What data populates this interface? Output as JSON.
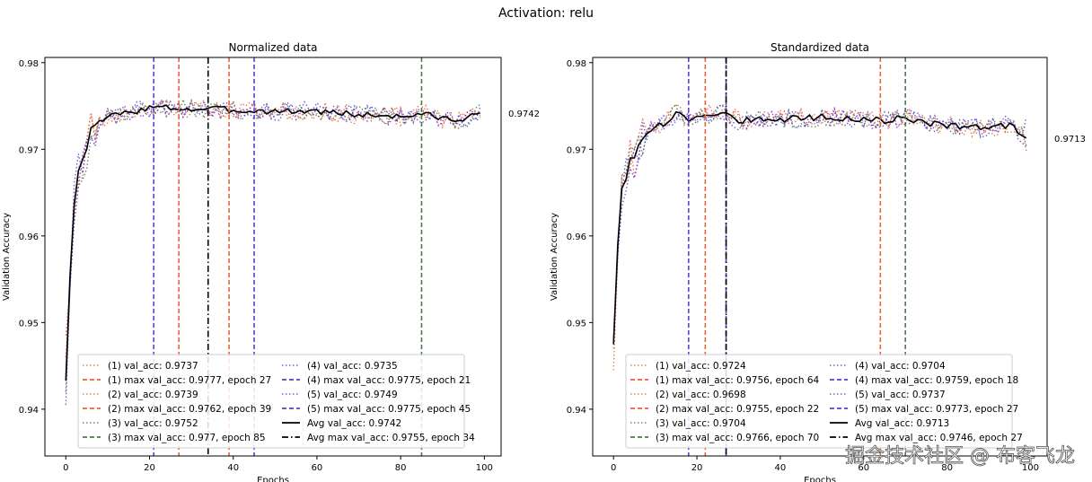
{
  "figure": {
    "suptitle": "Activation: relu",
    "watermark": "掘金技术社区 @ 布客飞龙"
  },
  "colors": {
    "run1": "#e8633a",
    "run2": "#e8633a",
    "run3": "#4a7a4a",
    "run4": "#5a3fd6",
    "run5": "#5a3fd6",
    "avg": "#000000"
  },
  "chart_data": [
    {
      "type": "line",
      "title": "Normalized data",
      "xlabel": "Epochs",
      "ylabel": "Validation Accuracy",
      "xlim": [
        -5,
        104
      ],
      "ylim": [
        0.9346,
        0.9806
      ],
      "xticks": [
        0,
        20,
        40,
        60,
        80,
        100
      ],
      "yticks": [
        0.94,
        0.95,
        0.96,
        0.97,
        0.98
      ],
      "ytick_labels": [
        "0.94",
        "0.95",
        "0.96",
        "0.97",
        "0.98"
      ],
      "final_avg_label": "0.9742",
      "final_avg_value": 0.9742,
      "avg_curve": {
        "start": 0.9433,
        "plateau": 0.9745,
        "keypoints": [
          [
            0,
            0.9433
          ],
          [
            1,
            0.9555
          ],
          [
            2,
            0.9635
          ],
          [
            3,
            0.9675
          ],
          [
            4,
            0.9688
          ],
          [
            5,
            0.97
          ],
          [
            6,
            0.9725
          ],
          [
            7,
            0.9728
          ],
          [
            8,
            0.9733
          ],
          [
            10,
            0.9737
          ],
          [
            12,
            0.974
          ],
          [
            15,
            0.9742
          ],
          [
            20,
            0.9748
          ],
          [
            25,
            0.9748
          ],
          [
            30,
            0.9746
          ],
          [
            35,
            0.9747
          ],
          [
            40,
            0.9745
          ],
          [
            50,
            0.9744
          ],
          [
            60,
            0.9744
          ],
          [
            70,
            0.974
          ],
          [
            80,
            0.9738
          ],
          [
            85,
            0.9741
          ],
          [
            90,
            0.9736
          ],
          [
            95,
            0.9733
          ],
          [
            99,
            0.9742
          ]
        ]
      },
      "vlines": [
        {
          "x": 27,
          "series": "run1",
          "style": "dashed"
        },
        {
          "x": 39,
          "series": "run2",
          "style": "dashed"
        },
        {
          "x": 85,
          "series": "run3",
          "style": "dashed"
        },
        {
          "x": 21,
          "series": "run4",
          "style": "dashed"
        },
        {
          "x": 45,
          "series": "run5",
          "style": "dashed"
        },
        {
          "x": 34,
          "series": "avg",
          "style": "dashdot"
        }
      ],
      "series": [
        {
          "name": "(1) val_acc",
          "final": 0.9737,
          "color_key": "run1",
          "start": 0.9485,
          "seed": 11
        },
        {
          "name": "(2) val_acc",
          "final": 0.9739,
          "color_key": "run2",
          "start": 0.946,
          "seed": 23
        },
        {
          "name": "(3) val_acc",
          "final": 0.9752,
          "color_key": "run3",
          "start": 0.942,
          "seed": 37
        },
        {
          "name": "(4) val_acc",
          "final": 0.9735,
          "color_key": "run4",
          "start": 0.9405,
          "seed": 41
        },
        {
          "name": "(5) val_acc",
          "final": 0.9749,
          "color_key": "run5",
          "start": 0.944,
          "seed": 53
        }
      ],
      "legend": {
        "placement": "lower-center",
        "col1": [
          {
            "label": "(1) val_acc: 0.9737",
            "style": "dotted",
            "color_key": "run1"
          },
          {
            "label": "(1) max val_acc: 0.9777, epoch 27",
            "style": "dashed",
            "color_key": "run1"
          },
          {
            "label": "(2) val_acc: 0.9739",
            "style": "dotted",
            "color_key": "run2"
          },
          {
            "label": "(2) max val_acc: 0.9762, epoch 39",
            "style": "dashed",
            "color_key": "run2"
          },
          {
            "label": "(3) val_acc: 0.9752",
            "style": "dotted",
            "color_key": "run3"
          },
          {
            "label": "(3) max val_acc: 0.977, epoch 85",
            "style": "dashed",
            "color_key": "run3"
          }
        ],
        "col2": [
          {
            "label": "(4) val_acc: 0.9735",
            "style": "dotted",
            "color_key": "run4"
          },
          {
            "label": "(4) max val_acc: 0.9775, epoch 21",
            "style": "dashed",
            "color_key": "run4"
          },
          {
            "label": "(5) val_acc: 0.9749",
            "style": "dotted",
            "color_key": "run5"
          },
          {
            "label": "(5) max val_acc: 0.9775, epoch 45",
            "style": "dashed",
            "color_key": "run5"
          },
          {
            "label": "Avg val_acc: 0.9742",
            "style": "solid",
            "color_key": "avg"
          },
          {
            "label": "Avg max val_acc: 0.9755, epoch 34",
            "style": "dashdot",
            "color_key": "avg"
          }
        ]
      }
    },
    {
      "type": "line",
      "title": "Standardized data",
      "xlabel": "Epochs",
      "ylabel": "Validation Accuracy",
      "xlim": [
        -5,
        104
      ],
      "ylim": [
        0.9346,
        0.9806
      ],
      "xticks": [
        0,
        20,
        40,
        60,
        80,
        100
      ],
      "yticks": [
        0.94,
        0.95,
        0.96,
        0.97,
        0.98
      ],
      "ytick_labels": [
        "0.94",
        "0.95",
        "0.96",
        "0.97",
        "0.98"
      ],
      "final_avg_label": "0.9713",
      "final_avg_value": 0.9713,
      "avg_curve": {
        "start": 0.9475,
        "plateau": 0.9735,
        "keypoints": [
          [
            0,
            0.9475
          ],
          [
            1,
            0.959
          ],
          [
            2,
            0.9655
          ],
          [
            3,
            0.9665
          ],
          [
            4,
            0.969
          ],
          [
            5,
            0.969
          ],
          [
            6,
            0.9705
          ],
          [
            7,
            0.9712
          ],
          [
            8,
            0.9718
          ],
          [
            10,
            0.9728
          ],
          [
            12,
            0.973
          ],
          [
            15,
            0.9742
          ],
          [
            18,
            0.9735
          ],
          [
            22,
            0.974
          ],
          [
            27,
            0.9743
          ],
          [
            30,
            0.9733
          ],
          [
            40,
            0.9735
          ],
          [
            50,
            0.9737
          ],
          [
            60,
            0.9735
          ],
          [
            65,
            0.9733
          ],
          [
            70,
            0.9737
          ],
          [
            75,
            0.973
          ],
          [
            80,
            0.9728
          ],
          [
            85,
            0.9725
          ],
          [
            90,
            0.9725
          ],
          [
            95,
            0.9728
          ],
          [
            99,
            0.9713
          ]
        ]
      },
      "vlines": [
        {
          "x": 64,
          "series": "run1",
          "style": "dashed"
        },
        {
          "x": 22,
          "series": "run2",
          "style": "dashed"
        },
        {
          "x": 70,
          "series": "run3",
          "style": "dashed"
        },
        {
          "x": 18,
          "series": "run4",
          "style": "dashed"
        },
        {
          "x": 27,
          "series": "run5",
          "style": "dashed"
        },
        {
          "x": 27,
          "series": "avg",
          "style": "dashdot"
        }
      ],
      "series": [
        {
          "name": "(1) val_acc",
          "final": 0.9724,
          "color_key": "run1",
          "start": 0.9445,
          "seed": 61
        },
        {
          "name": "(2) val_acc",
          "final": 0.9698,
          "color_key": "run2",
          "start": 0.947,
          "seed": 71
        },
        {
          "name": "(3) val_acc",
          "final": 0.9704,
          "color_key": "run3",
          "start": 0.948,
          "seed": 83
        },
        {
          "name": "(4) val_acc",
          "final": 0.9704,
          "color_key": "run4",
          "start": 0.9478,
          "seed": 97
        },
        {
          "name": "(5) val_acc",
          "final": 0.9737,
          "color_key": "run5",
          "start": 0.9482,
          "seed": 101
        }
      ],
      "legend": {
        "placement": "lower-center",
        "col1": [
          {
            "label": "(1) val_acc: 0.9724",
            "style": "dotted",
            "color_key": "run1"
          },
          {
            "label": "(1) max val_acc: 0.9756, epoch 64",
            "style": "dashed",
            "color_key": "run1"
          },
          {
            "label": "(2) val_acc: 0.9698",
            "style": "dotted",
            "color_key": "run2"
          },
          {
            "label": "(2) max val_acc: 0.9755, epoch 22",
            "style": "dashed",
            "color_key": "run2"
          },
          {
            "label": "(3) val_acc: 0.9704",
            "style": "dotted",
            "color_key": "run3"
          },
          {
            "label": "(3) max val_acc: 0.9766, epoch 70",
            "style": "dashed",
            "color_key": "run3"
          }
        ],
        "col2": [
          {
            "label": "(4) val_acc: 0.9704",
            "style": "dotted",
            "color_key": "run4"
          },
          {
            "label": "(4) max val_acc: 0.9759, epoch 18",
            "style": "dashed",
            "color_key": "run4"
          },
          {
            "label": "(5) val_acc: 0.9737",
            "style": "dotted",
            "color_key": "run5"
          },
          {
            "label": "(5) max val_acc: 0.9773, epoch 27",
            "style": "dashed",
            "color_key": "run5"
          },
          {
            "label": "Avg val_acc: 0.9713",
            "style": "solid",
            "color_key": "avg"
          },
          {
            "label": "Avg max val_acc: 0.9746, epoch 27",
            "style": "dashdot",
            "color_key": "avg"
          }
        ]
      }
    }
  ]
}
